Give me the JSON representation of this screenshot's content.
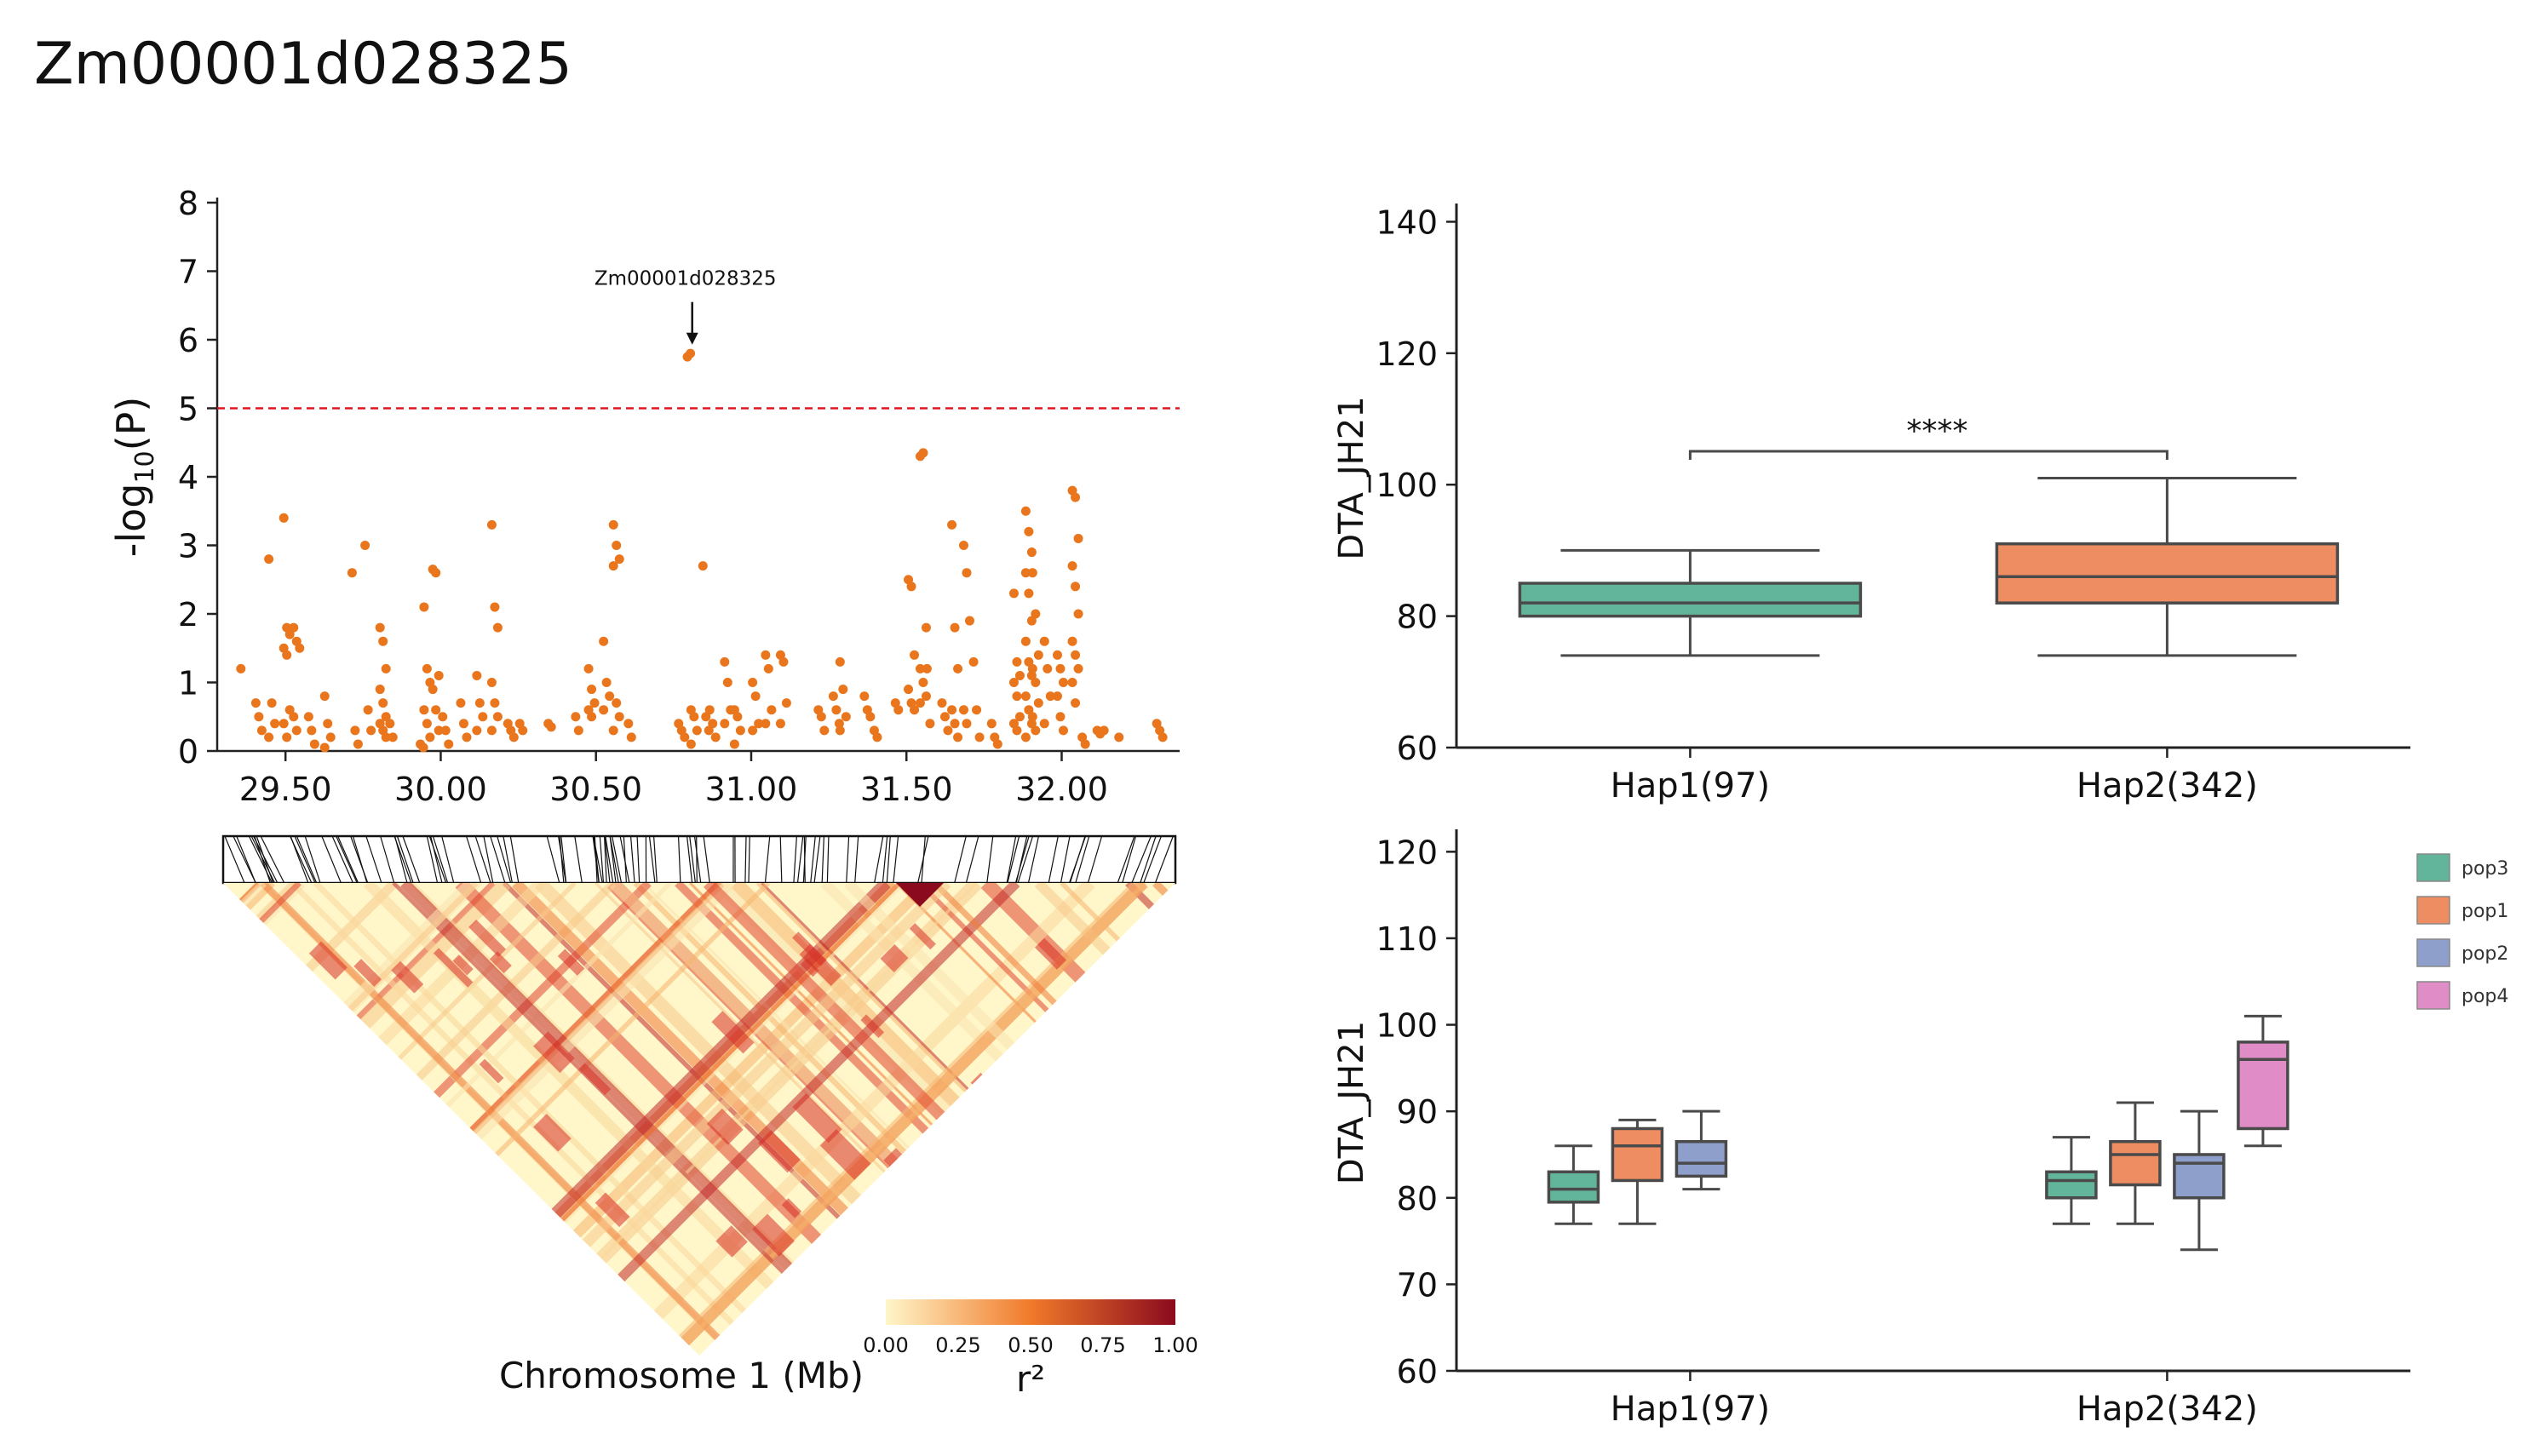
{
  "title": "Zm00001d028325",
  "colors": {
    "point": "#e9751c",
    "threshold": "#e0151f",
    "pop3": "#62b59b",
    "pop1": "#ee8c62",
    "pop2": "#8e9fcb",
    "pop4": "#e08cc6",
    "box_edge": "#4a4a4a",
    "ld_low": "#fff6c9",
    "ld_mid": "#f07a2a",
    "ld_high": "#8b0a1e"
  },
  "chart_data": [
    {
      "type": "scatter",
      "name": "manhattan",
      "xlabel": "Chromosome 1 (Mb)",
      "ylabel": "-log10(P)",
      "ylabel_base": "-log",
      "ylabel_sub": "10",
      "ylabel_rest": "(P)",
      "xlim": [
        29.28,
        32.38
      ],
      "ylim": [
        0,
        8
      ],
      "xticks": [
        "29.50",
        "30.00",
        "30.50",
        "31.00",
        "31.50",
        "32.00"
      ],
      "yticks": [
        "0",
        "1",
        "2",
        "3",
        "4",
        "5",
        "6",
        "7",
        "8"
      ],
      "threshold": 5,
      "annotation": {
        "text": "Zm00001d028325",
        "x": 30.81,
        "y": 5.78
      },
      "groups": [
        {
          "x": 29.37,
          "ys": [
            1.2
          ]
        },
        {
          "x": 29.41,
          "ys": [
            0.7,
            0.5,
            0.3
          ]
        },
        {
          "x": 29.46,
          "ys": [
            2.8,
            0.7,
            0.4,
            0.2
          ]
        },
        {
          "x": 29.5,
          "ys": [
            3.4,
            1.8,
            1.7,
            1.5,
            1.4,
            0.6,
            0.4,
            0.2
          ]
        },
        {
          "x": 29.54,
          "ys": [
            1.8,
            1.6,
            1.5,
            0.5,
            0.3
          ]
        },
        {
          "x": 29.58,
          "ys": [
            0.5,
            0.3,
            0.1
          ]
        },
        {
          "x": 29.64,
          "ys": [
            0.8,
            0.4,
            0.2,
            0.05
          ]
        },
        {
          "x": 29.72,
          "ys": [
            2.6,
            0.3,
            0.1
          ]
        },
        {
          "x": 29.77,
          "ys": [
            3.0,
            0.6,
            0.3
          ]
        },
        {
          "x": 29.81,
          "ys": [
            1.8,
            1.6,
            1.2,
            0.9,
            0.7,
            0.5,
            0.4,
            0.3,
            0.2
          ]
        },
        {
          "x": 29.85,
          "ys": [
            0.4,
            0.2
          ]
        },
        {
          "x": 29.94,
          "ys": [
            0.1,
            0.05
          ]
        },
        {
          "x": 29.96,
          "ys": [
            2.1,
            1.2,
            1.0,
            0.6,
            0.4,
            0.2
          ]
        },
        {
          "x": 29.98,
          "ys": [
            2.65,
            2.6,
            1.1,
            0.9,
            0.6,
            0.3
          ]
        },
        {
          "x": 30.02,
          "ys": [
            0.5,
            0.3,
            0.1
          ]
        },
        {
          "x": 30.07,
          "ys": [
            0.7,
            0.4,
            0.2
          ]
        },
        {
          "x": 30.13,
          "ys": [
            1.1,
            0.7,
            0.5,
            0.3
          ]
        },
        {
          "x": 30.17,
          "ys": [
            3.3,
            2.1,
            1.8,
            1.0,
            0.7,
            0.5,
            0.3
          ]
        },
        {
          "x": 30.23,
          "ys": [
            0.4,
            0.3,
            0.2
          ]
        },
        {
          "x": 30.26,
          "ys": [
            0.4,
            0.3
          ]
        },
        {
          "x": 30.36,
          "ys": [
            0.4,
            0.35
          ]
        },
        {
          "x": 30.44,
          "ys": [
            0.5,
            0.3
          ]
        },
        {
          "x": 30.49,
          "ys": [
            1.2,
            0.9,
            0.7,
            0.6,
            0.5
          ]
        },
        {
          "x": 30.53,
          "ys": [
            1.6,
            1.0,
            0.8,
            0.6
          ]
        },
        {
          "x": 30.57,
          "ys": [
            3.3,
            3.0,
            2.8,
            2.7,
            0.7,
            0.5,
            0.3
          ]
        },
        {
          "x": 30.61,
          "ys": [
            0.4,
            0.2
          ]
        },
        {
          "x": 30.78,
          "ys": [
            0.4,
            0.3,
            0.2
          ]
        },
        {
          "x": 30.8,
          "ys": [
            5.75,
            5.8
          ]
        },
        {
          "x": 30.82,
          "ys": [
            0.6,
            0.5,
            0.3,
            0.1
          ]
        },
        {
          "x": 30.85,
          "ys": [
            2.7,
            0.5,
            0.3
          ]
        },
        {
          "x": 30.88,
          "ys": [
            0.6,
            0.4,
            0.2
          ]
        },
        {
          "x": 30.92,
          "ys": [
            1.3,
            1.0,
            0.6,
            0.4
          ]
        },
        {
          "x": 30.96,
          "ys": [
            0.6,
            0.5,
            0.3,
            0.1
          ]
        },
        {
          "x": 31.01,
          "ys": [
            1.0,
            0.8,
            0.4,
            0.3
          ]
        },
        {
          "x": 31.06,
          "ys": [
            1.4,
            1.2,
            0.6,
            0.4
          ]
        },
        {
          "x": 31.1,
          "ys": [
            1.4,
            1.3,
            0.7,
            0.4
          ]
        },
        {
          "x": 31.23,
          "ys": [
            0.6,
            0.5,
            0.3
          ]
        },
        {
          "x": 31.27,
          "ys": [
            0.8,
            0.6,
            0.4
          ]
        },
        {
          "x": 31.3,
          "ys": [
            1.3,
            0.9,
            0.5,
            0.3
          ]
        },
        {
          "x": 31.37,
          "ys": [
            0.8,
            0.6,
            0.5
          ]
        },
        {
          "x": 31.41,
          "ys": [
            0.3,
            0.2
          ]
        },
        {
          "x": 31.47,
          "ys": [
            0.7,
            0.6
          ]
        },
        {
          "x": 31.52,
          "ys": [
            2.5,
            2.4,
            1.4,
            0.9,
            0.7,
            0.6
          ]
        },
        {
          "x": 31.55,
          "ys": [
            4.3,
            4.35,
            1.8,
            1.2,
            1.0,
            0.8,
            0.7
          ]
        },
        {
          "x": 31.58,
          "ys": [
            1.2,
            0.4
          ]
        },
        {
          "x": 31.62,
          "ys": [
            0.7,
            0.5,
            0.3
          ]
        },
        {
          "x": 31.66,
          "ys": [
            3.3,
            1.8,
            1.2,
            0.6,
            0.4,
            0.2
          ]
        },
        {
          "x": 31.69,
          "ys": [
            3.0,
            2.6,
            1.9,
            0.6,
            0.4
          ]
        },
        {
          "x": 31.73,
          "ys": [
            1.3,
            0.6,
            0.2
          ]
        },
        {
          "x": 31.78,
          "ys": [
            0.4,
            0.2,
            0.1
          ]
        },
        {
          "x": 31.86,
          "ys": [
            2.3,
            1.3,
            1.1,
            1.0,
            0.8,
            0.5,
            0.4,
            0.3
          ]
        },
        {
          "x": 31.89,
          "ys": [
            3.5,
            3.2,
            2.9,
            2.6,
            2.3,
            1.9,
            1.6,
            1.3,
            1.1,
            0.8,
            0.6,
            0.4,
            0.2
          ]
        },
        {
          "x": 31.92,
          "ys": [
            2.6,
            2.0,
            1.4,
            1.2,
            1.0,
            0.7,
            0.5,
            0.3
          ]
        },
        {
          "x": 31.95,
          "ys": [
            1.6,
            1.2,
            0.8,
            0.4
          ]
        },
        {
          "x": 32.0,
          "ys": [
            1.4,
            1.2,
            1.0,
            0.8,
            0.5,
            0.3
          ]
        },
        {
          "x": 32.04,
          "ys": [
            3.8,
            3.7,
            3.1,
            2.7,
            2.4,
            2.0,
            1.6,
            1.4,
            1.2,
            1.0,
            0.7
          ]
        },
        {
          "x": 32.08,
          "ys": [
            0.2,
            0.1
          ]
        },
        {
          "x": 32.12,
          "ys": [
            0.3,
            0.25
          ]
        },
        {
          "x": 32.15,
          "ys": [
            0.3
          ]
        },
        {
          "x": 32.19,
          "ys": [
            0.2
          ]
        },
        {
          "x": 32.32,
          "ys": [
            0.4,
            0.3,
            0.2
          ]
        }
      ]
    },
    {
      "type": "heatmap",
      "name": "ld-heatmap",
      "colorbar_label": "r²",
      "colorbar_ticks": [
        "0.00",
        "0.25",
        "0.50",
        "0.75",
        "1.00"
      ],
      "range": [
        0,
        1
      ]
    },
    {
      "type": "box",
      "name": "haplotype-box",
      "ylabel": "DTA_JH21",
      "ylim": [
        60,
        142
      ],
      "yticks": [
        "60",
        "80",
        "100",
        "120",
        "140"
      ],
      "categories": [
        "Hap1(97)",
        "Hap2(342)"
      ],
      "significance": "****",
      "boxes": [
        {
          "category": "Hap1(97)",
          "color_key": "pop3",
          "whislo": 74,
          "q1": 80,
          "med": 82,
          "q3": 85,
          "whishi": 90
        },
        {
          "category": "Hap2(342)",
          "color_key": "pop1",
          "whislo": 74,
          "q1": 82,
          "med": 86,
          "q3": 91,
          "whishi": 101
        }
      ]
    },
    {
      "type": "box",
      "name": "population-box",
      "ylabel": "DTA_JH21",
      "ylim": [
        60,
        122
      ],
      "yticks": [
        "60",
        "70",
        "80",
        "90",
        "100",
        "110",
        "120"
      ],
      "categories": [
        "Hap1(97)",
        "Hap2(342)"
      ],
      "legend": [
        "pop3",
        "pop1",
        "pop2",
        "pop4"
      ],
      "boxes": [
        {
          "category": "Hap1(97)",
          "pop": "pop3",
          "whislo": 77,
          "q1": 79.5,
          "med": 81,
          "q3": 83,
          "whishi": 86
        },
        {
          "category": "Hap1(97)",
          "pop": "pop1",
          "whislo": 77,
          "q1": 82,
          "med": 86,
          "q3": 88,
          "whishi": 89
        },
        {
          "category": "Hap1(97)",
          "pop": "pop2",
          "whislo": 81,
          "q1": 82.5,
          "med": 84,
          "q3": 86.5,
          "whishi": 90
        },
        {
          "category": "Hap2(342)",
          "pop": "pop3",
          "whislo": 77,
          "q1": 80,
          "med": 82,
          "q3": 83,
          "whishi": 87
        },
        {
          "category": "Hap2(342)",
          "pop": "pop1",
          "whislo": 77,
          "q1": 81.5,
          "med": 85,
          "q3": 86.5,
          "whishi": 91
        },
        {
          "category": "Hap2(342)",
          "pop": "pop2",
          "whislo": 74,
          "q1": 80,
          "med": 84,
          "q3": 85,
          "whishi": 90
        },
        {
          "category": "Hap2(342)",
          "pop": "pop4",
          "whislo": 86,
          "q1": 88,
          "med": 96,
          "q3": 98,
          "whishi": 101
        }
      ]
    }
  ]
}
